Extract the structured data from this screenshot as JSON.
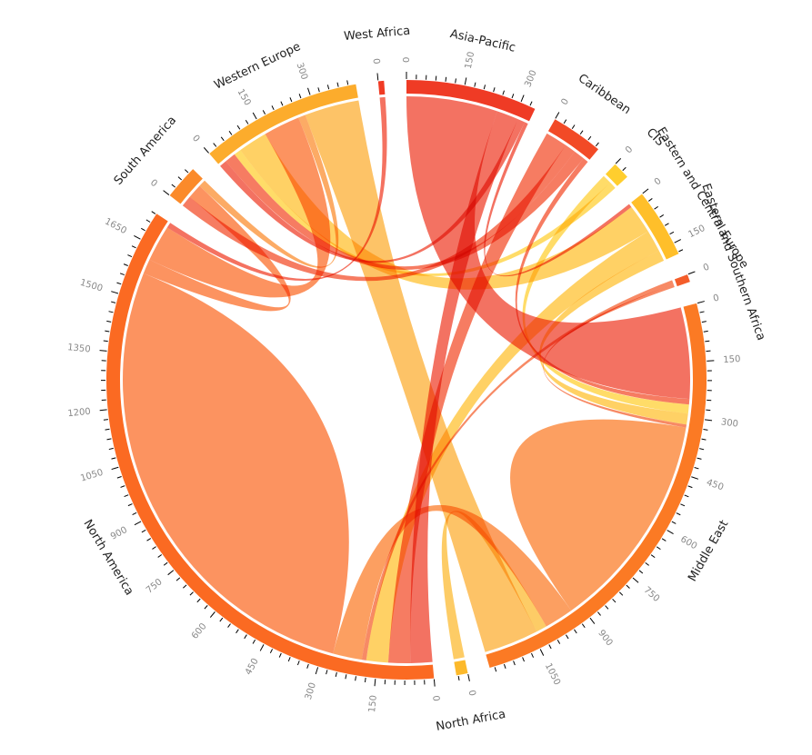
{
  "chart_data": {
    "type": "chord",
    "groups": [
      {
        "name": "Asia-Pacific",
        "color": "#ef3b25"
      },
      {
        "name": "Caribbean",
        "color": "#f24a26"
      },
      {
        "name": "CIS",
        "color": "#ffce2e"
      },
      {
        "name": "Eastern and Central Europe",
        "color": "#ffbf2a"
      },
      {
        "name": "Eastern and Southern Africa",
        "color": "#f45d2a"
      },
      {
        "name": "Middle East",
        "color": "#fb7a24"
      },
      {
        "name": "North Africa",
        "color": "#fcb92b"
      },
      {
        "name": "North America",
        "color": "#fb6a22"
      },
      {
        "name": "South America",
        "color": "#fb8a2a"
      },
      {
        "name": "Western Europe",
        "color": "#fcac2c"
      },
      {
        "name": "West Africa",
        "color": "#f03b24"
      }
    ],
    "tick_step": 150,
    "tick_labels": [
      "0",
      "150",
      "300",
      "450",
      "600",
      "750",
      "900",
      "1050"
    ],
    "flows": [
      {
        "source": "Asia-Pacific",
        "target": "Middle East",
        "value": 250
      },
      {
        "source": "Asia-Pacific",
        "target": "North America",
        "value": 60
      },
      {
        "source": "Asia-Pacific",
        "target": "Western Europe",
        "value": 20
      },
      {
        "source": "Asia-Pacific",
        "target": "Eastern and Central Europe",
        "value": 10
      },
      {
        "source": "Caribbean",
        "target": "North America",
        "value": 60
      },
      {
        "source": "Caribbean",
        "target": "South America",
        "value": 30
      },
      {
        "source": "Caribbean",
        "target": "Western Europe",
        "value": 30
      },
      {
        "source": "Caribbean",
        "target": "Middle East",
        "value": 15
      },
      {
        "source": "CIS",
        "target": "Middle East",
        "value": 25
      },
      {
        "source": "CIS",
        "target": "Western Europe",
        "value": 20
      },
      {
        "source": "Eastern and Central Europe",
        "target": "Western Europe",
        "value": 80
      },
      {
        "source": "Eastern and Central Europe",
        "target": "North America",
        "value": 60
      },
      {
        "source": "Eastern and Central Europe",
        "target": "Middle East",
        "value": 30
      },
      {
        "source": "Eastern and Southern Africa",
        "target": "North America",
        "value": 12
      },
      {
        "source": "Eastern and Southern Africa",
        "target": "Middle East",
        "value": 8
      },
      {
        "source": "Middle East",
        "target": "Middle East",
        "value": 300
      },
      {
        "source": "Middle East",
        "target": "North America",
        "value": 80
      },
      {
        "source": "North Africa",
        "target": "Middle East",
        "value": 30
      },
      {
        "source": "North America",
        "target": "North America",
        "value": 650
      },
      {
        "source": "North America",
        "target": "South America",
        "value": 40
      },
      {
        "source": "North America",
        "target": "Western Europe",
        "value": 100
      },
      {
        "source": "South America",
        "target": "Western Europe",
        "value": 20
      },
      {
        "source": "Western Europe",
        "target": "Middle East",
        "value": 150
      },
      {
        "source": "West Africa",
        "target": "North America",
        "value": 15
      }
    ]
  }
}
